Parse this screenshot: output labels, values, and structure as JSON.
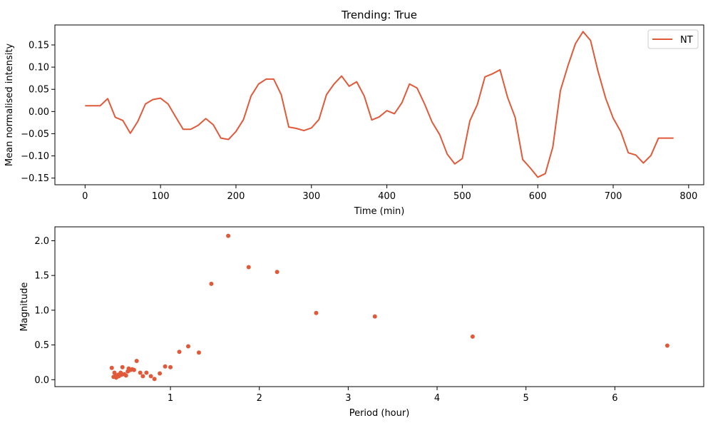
{
  "chart_data": [
    {
      "type": "line",
      "title": "Trending: True",
      "xlabel": "Time (min)",
      "ylabel": "Mean normalised intensity",
      "xlim": [
        -40,
        820
      ],
      "ylim": [
        -0.165,
        0.195
      ],
      "xticks": [
        0,
        100,
        200,
        300,
        400,
        500,
        600,
        700,
        800
      ],
      "yticks": [
        -0.15,
        -0.1,
        -0.05,
        0.0,
        0.05,
        0.1,
        0.15
      ],
      "ytick_labels": [
        "−0.15",
        "−0.10",
        "−0.05",
        "0.00",
        "0.05",
        "0.10",
        "0.15"
      ],
      "grid": false,
      "legend": "top-right",
      "series": [
        {
          "name": "NT",
          "color": "#e05a3a",
          "x": [
            0,
            10,
            20,
            30,
            40,
            50,
            60,
            70,
            80,
            90,
            100,
            110,
            120,
            130,
            140,
            150,
            160,
            170,
            180,
            190,
            200,
            210,
            220,
            230,
            240,
            250,
            260,
            270,
            280,
            290,
            300,
            310,
            320,
            330,
            340,
            350,
            360,
            370,
            380,
            390,
            400,
            410,
            420,
            430,
            440,
            450,
            460,
            470,
            480,
            490,
            500,
            510,
            520,
            530,
            540,
            550,
            560,
            570,
            580,
            590,
            600,
            610,
            620,
            630,
            640,
            650,
            660,
            670,
            680,
            690,
            700,
            710,
            720,
            730,
            740,
            750,
            760,
            770,
            780
          ],
          "y": [
            0.013,
            0.013,
            0.013,
            0.029,
            -0.013,
            -0.02,
            -0.049,
            -0.022,
            0.017,
            0.027,
            0.03,
            0.017,
            -0.012,
            -0.04,
            -0.04,
            -0.031,
            -0.016,
            -0.03,
            -0.06,
            -0.063,
            -0.045,
            -0.018,
            0.035,
            0.062,
            0.073,
            0.073,
            0.038,
            -0.035,
            -0.038,
            -0.043,
            -0.037,
            -0.018,
            0.038,
            0.062,
            0.08,
            0.057,
            0.067,
            0.035,
            -0.019,
            -0.012,
            0.002,
            -0.005,
            0.02,
            0.062,
            0.053,
            0.017,
            -0.024,
            -0.052,
            -0.096,
            -0.118,
            -0.106,
            -0.021,
            0.016,
            0.078,
            0.085,
            0.094,
            0.032,
            -0.013,
            -0.108,
            -0.127,
            -0.148,
            -0.14,
            -0.08,
            0.047,
            0.103,
            0.153,
            0.18,
            0.16,
            0.09,
            0.03,
            -0.015,
            -0.045,
            -0.093,
            -0.098,
            -0.116,
            -0.099,
            -0.06,
            -0.06,
            -0.06
          ]
        }
      ]
    },
    {
      "type": "scatter",
      "title": "",
      "xlabel": "Period (hour)",
      "ylabel": "Magnitude",
      "xlim": [
        -0.3,
        7.0
      ],
      "ylim": [
        -0.1,
        2.2
      ],
      "xticks": [
        1,
        2,
        3,
        4,
        5,
        6
      ],
      "yticks": [
        0.0,
        0.5,
        1.0,
        1.5,
        2.0
      ],
      "ytick_labels": [
        "0.0",
        "0.5",
        "1.0",
        "1.5",
        "2.0"
      ],
      "grid": false,
      "series": [
        {
          "color": "#e05a3a",
          "x": [
            0.34,
            0.36,
            0.37,
            0.38,
            0.39,
            0.4,
            0.41,
            0.42,
            0.43,
            0.44,
            0.45,
            0.46,
            0.48,
            0.5,
            0.52,
            0.53,
            0.55,
            0.57,
            0.59,
            0.62,
            0.66,
            0.69,
            0.73,
            0.78,
            0.82,
            0.88,
            0.94,
            1.0,
            1.1,
            1.2,
            1.32,
            1.46,
            1.65,
            1.88,
            2.2,
            2.64,
            3.3,
            4.4,
            6.59
          ],
          "y": [
            0.17,
            0.04,
            0.1,
            0.05,
            0.03,
            0.06,
            0.07,
            0.05,
            0.08,
            0.1,
            0.07,
            0.18,
            0.08,
            0.06,
            0.12,
            0.16,
            0.14,
            0.15,
            0.14,
            0.27,
            0.1,
            0.05,
            0.1,
            0.05,
            0.01,
            0.09,
            0.19,
            0.18,
            0.4,
            0.48,
            0.39,
            1.38,
            2.07,
            1.62,
            1.55,
            0.96,
            0.91,
            0.62,
            0.49
          ]
        }
      ]
    }
  ]
}
